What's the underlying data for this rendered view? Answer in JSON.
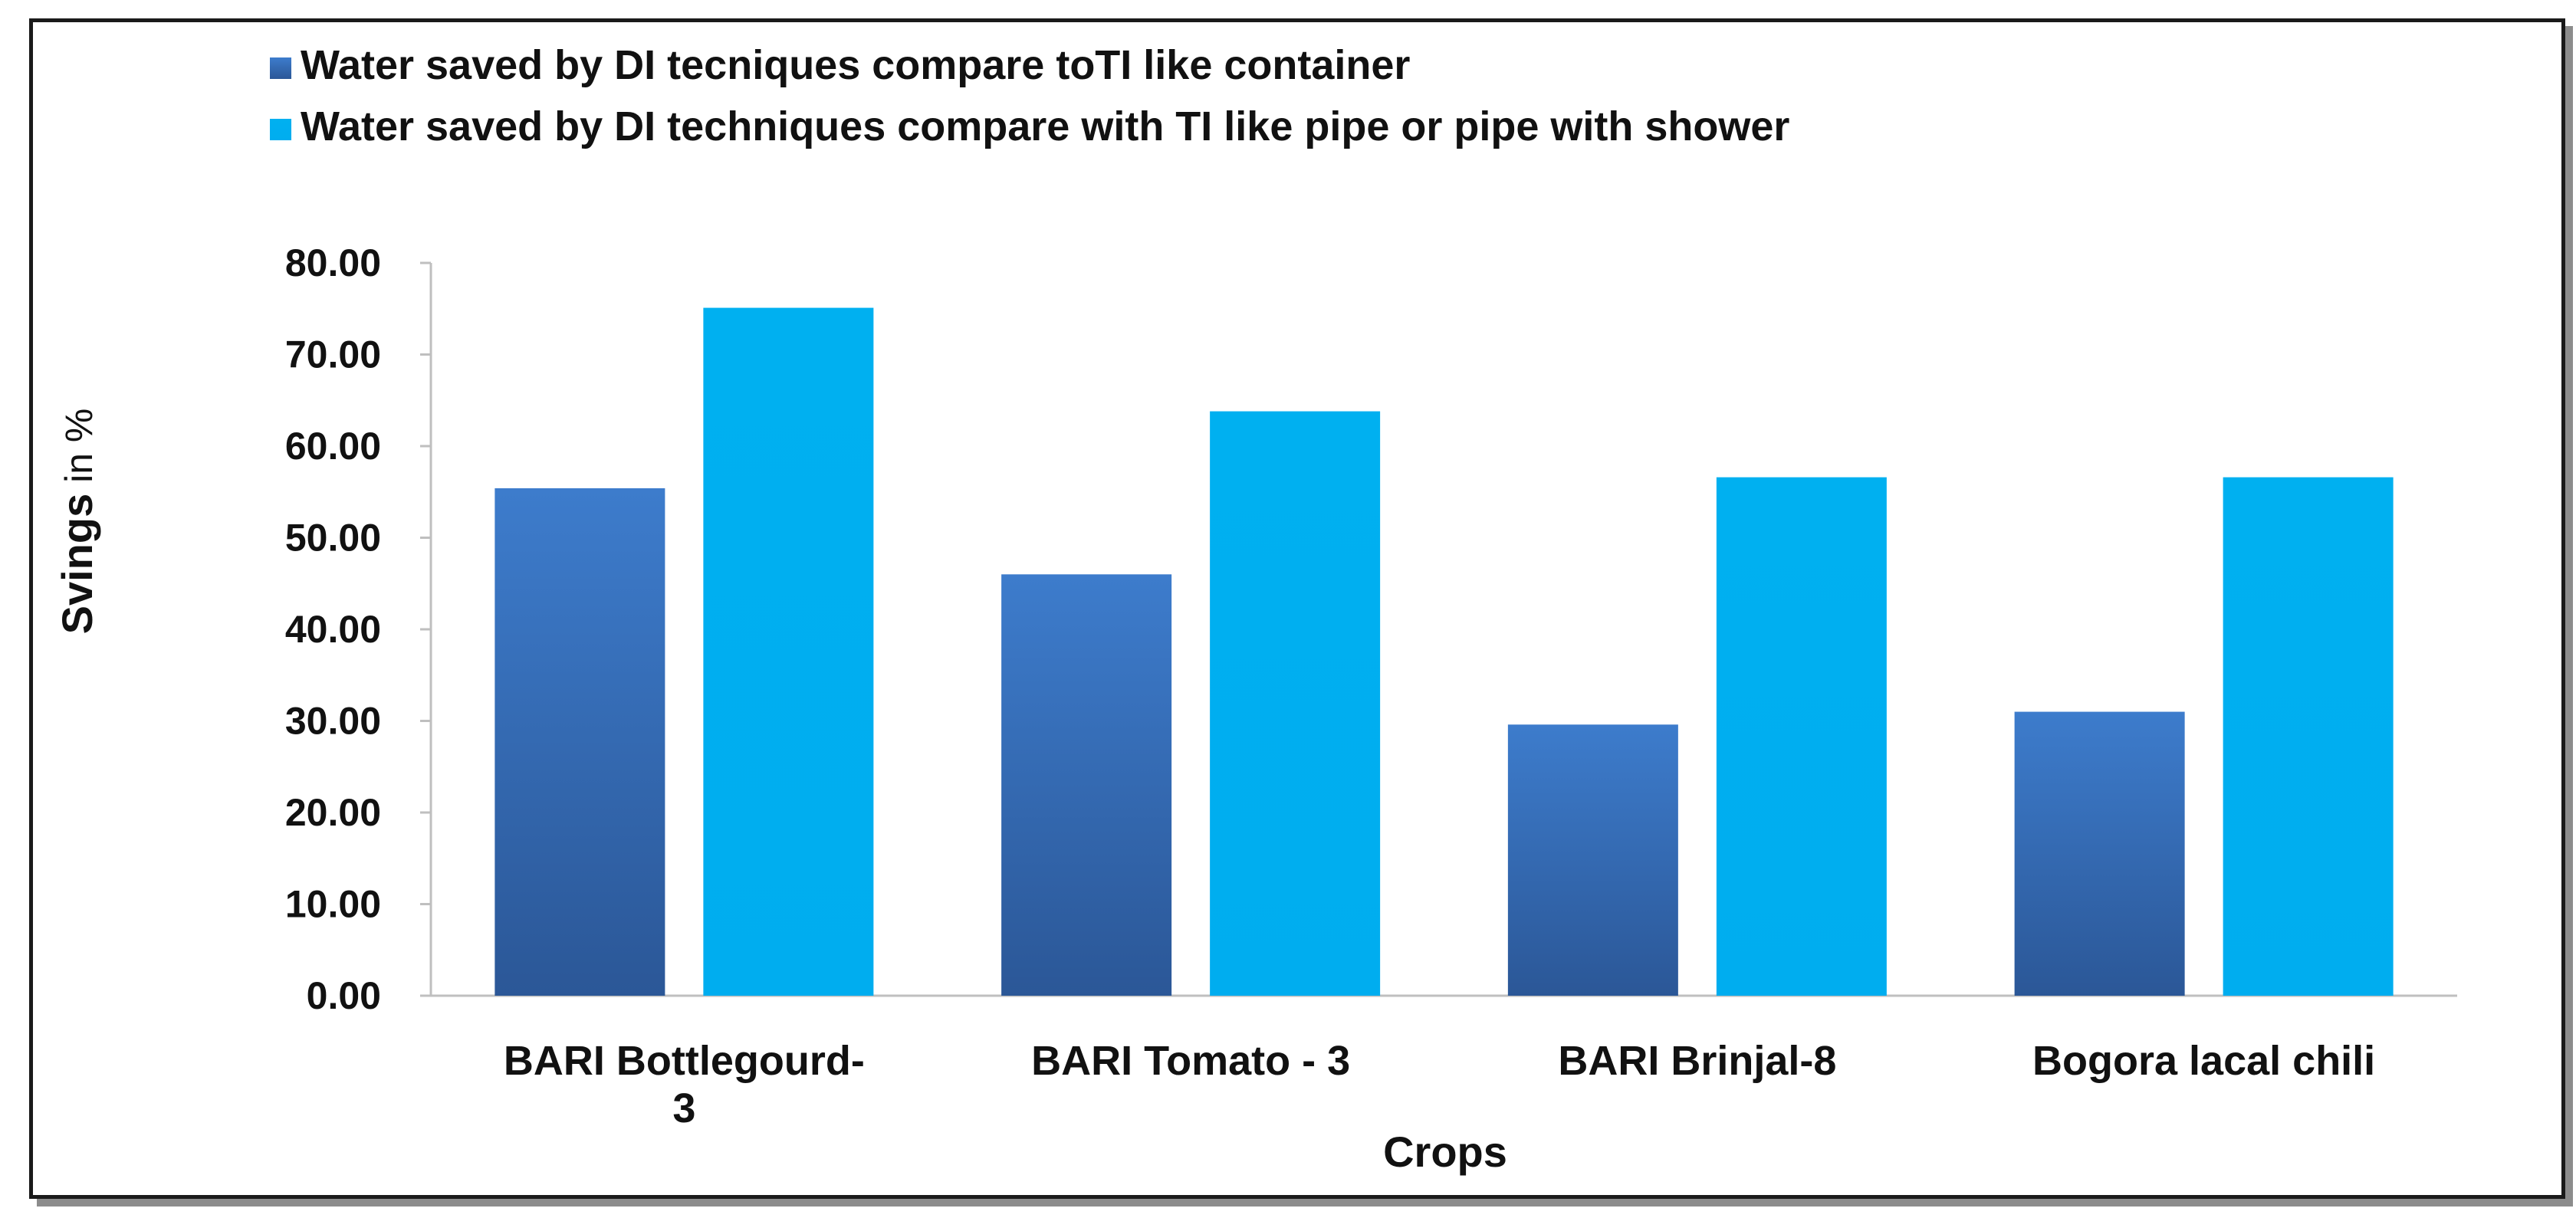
{
  "chart_data": {
    "type": "bar",
    "categories": [
      "BARI Bottlegourd-3",
      "BARI Tomato - 3",
      "BARI Brinjal-8",
      "Bogora lacal chili"
    ],
    "category_lines": [
      [
        "BARI Bottlegourd-",
        "3"
      ],
      [
        "BARI Tomato - 3"
      ],
      [
        "BARI Brinjal-8"
      ],
      [
        "Bogora lacal chili"
      ]
    ],
    "series": [
      {
        "name": "Water saved by DI tecniques compare toTI like container",
        "values": [
          55.4,
          46.0,
          29.6,
          31.0
        ],
        "color": "#3a73c0"
      },
      {
        "name": "Water saved by DI techniques compare with TI  like pipe or pipe with shower",
        "values": [
          75.1,
          63.8,
          56.6,
          56.6
        ],
        "color": "#00b0f0"
      }
    ],
    "ylabel_main": "Svings",
    "ylabel_unit": " in %",
    "xlabel": "Crops",
    "ylim": [
      0,
      80
    ],
    "yticks": [
      "0.00",
      "10.00",
      "20.00",
      "30.00",
      "40.00",
      "50.00",
      "60.00",
      "70.00",
      "80.00"
    ],
    "legend_position": "top-left",
    "grid": false
  }
}
